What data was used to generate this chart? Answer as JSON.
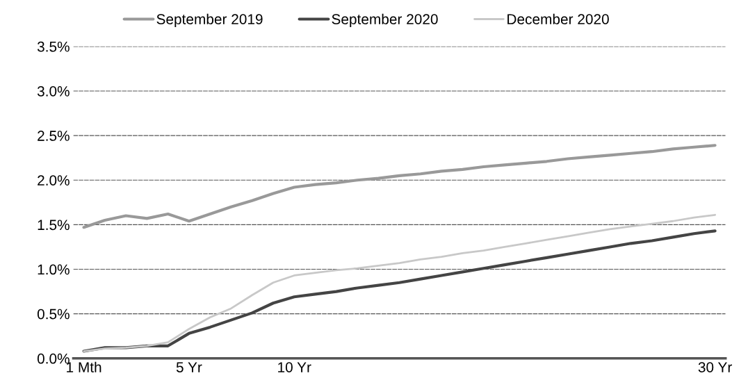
{
  "chart_data": {
    "type": "line",
    "categories": [
      "1 Mth",
      null,
      null,
      null,
      null,
      "5 Yr",
      null,
      null,
      null,
      null,
      "10 Yr",
      null,
      null,
      null,
      null,
      null,
      null,
      null,
      null,
      null,
      null,
      null,
      null,
      null,
      null,
      null,
      null,
      null,
      null,
      null,
      "30 Yr"
    ],
    "series": [
      {
        "name": "September 2019",
        "color": "#999999",
        "values": [
          1.47,
          1.55,
          1.6,
          1.57,
          1.62,
          1.54,
          1.62,
          1.7,
          1.77,
          1.85,
          1.92,
          1.95,
          1.97,
          2.0,
          2.02,
          2.05,
          2.07,
          2.1,
          2.12,
          2.15,
          2.17,
          2.19,
          2.21,
          2.24,
          2.26,
          2.28,
          2.3,
          2.32,
          2.35,
          2.37,
          2.39
        ]
      },
      {
        "name": "September 2020",
        "color": "#444444",
        "values": [
          0.08,
          0.12,
          0.12,
          0.14,
          0.14,
          0.28,
          0.35,
          0.43,
          0.51,
          0.62,
          0.69,
          0.72,
          0.75,
          0.79,
          0.82,
          0.85,
          0.89,
          0.93,
          0.97,
          1.01,
          1.05,
          1.09,
          1.13,
          1.17,
          1.21,
          1.25,
          1.29,
          1.32,
          1.36,
          1.4,
          1.43
        ]
      },
      {
        "name": "December 2020",
        "color": "#c8c8c8",
        "values": [
          0.08,
          0.11,
          0.12,
          0.14,
          0.18,
          0.33,
          0.46,
          0.56,
          0.71,
          0.85,
          0.93,
          0.96,
          0.99,
          1.01,
          1.04,
          1.07,
          1.11,
          1.14,
          1.18,
          1.21,
          1.25,
          1.29,
          1.33,
          1.37,
          1.41,
          1.45,
          1.48,
          1.51,
          1.54,
          1.58,
          1.61
        ]
      }
    ],
    "ylim": [
      0,
      3.5
    ],
    "yticks": [
      {
        "value": 0,
        "label": "0.0%"
      },
      {
        "value": 0.5,
        "label": "0.5%"
      },
      {
        "value": 1.0,
        "label": "1.0%"
      },
      {
        "value": 1.5,
        "label": "1.5%"
      },
      {
        "value": 2.0,
        "label": "2.0%"
      },
      {
        "value": 2.5,
        "label": "2.5%"
      },
      {
        "value": 3.0,
        "label": "3.0%"
      },
      {
        "value": 3.5,
        "label": "3.5%"
      }
    ],
    "grid": "y",
    "legend": "top",
    "marker": "none",
    "line_style": "solid"
  }
}
